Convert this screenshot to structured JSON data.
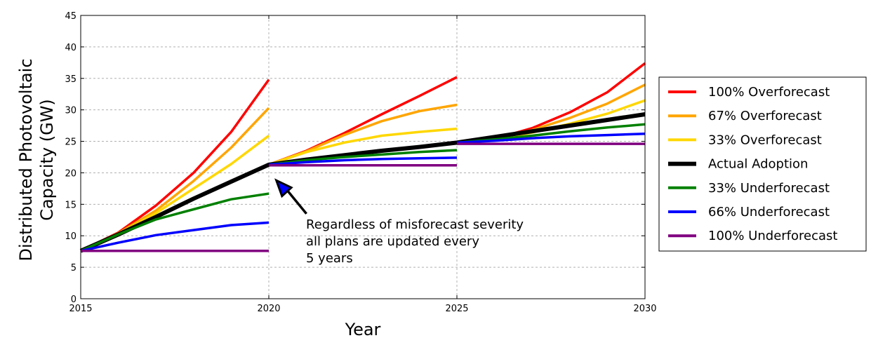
{
  "chart_data": {
    "type": "line",
    "xlabel": "Year",
    "ylabel_lines": [
      "Distributed Photovoltaic",
      "Capacity (GW)"
    ],
    "xlim": [
      2015,
      2030
    ],
    "ylim": [
      0,
      45
    ],
    "xticks": [
      "2015",
      "2020",
      "2025",
      "2030"
    ],
    "yticks": [
      "0",
      "5",
      "10",
      "15",
      "20",
      "25",
      "30",
      "35",
      "40",
      "45"
    ],
    "grid": true,
    "legend_position": "right",
    "annotation": {
      "lines": [
        "Regardless of misforecast severity",
        "all plans are updated every",
        "5 years"
      ],
      "arrow_target": [
        2020.2,
        18.8
      ],
      "arrow_tail": [
        2021.0,
        13.5
      ]
    },
    "series": [
      {
        "name": "100% Overforecast",
        "color": "#ff0000",
        "width": 3.5,
        "segments": [
          [
            [
              2015,
              7.6
            ],
            [
              2016,
              10.5
            ],
            [
              2017,
              14.8
            ],
            [
              2018,
              20.0
            ],
            [
              2019,
              26.5
            ],
            [
              2020,
              34.8
            ]
          ],
          [
            [
              2020,
              21.3
            ],
            [
              2021,
              23.5
            ],
            [
              2022,
              26.3
            ],
            [
              2023,
              29.3
            ],
            [
              2024,
              32.2
            ],
            [
              2025,
              35.2
            ]
          ],
          [
            [
              2025,
              24.8
            ],
            [
              2026,
              25.4
            ],
            [
              2027,
              27.1
            ],
            [
              2028,
              29.6
            ],
            [
              2029,
              32.8
            ],
            [
              2030,
              37.4
            ]
          ]
        ]
      },
      {
        "name": "67% Overforecast",
        "color": "#ffa500",
        "width": 3.5,
        "segments": [
          [
            [
              2015,
              7.6
            ],
            [
              2016,
              10.4
            ],
            [
              2017,
              14.0
            ],
            [
              2018,
              18.7
            ],
            [
              2019,
              24.0
            ],
            [
              2020,
              30.3
            ]
          ],
          [
            [
              2020,
              21.3
            ],
            [
              2021,
              23.4
            ],
            [
              2022,
              26.0
            ],
            [
              2023,
              28.2
            ],
            [
              2024,
              29.8
            ],
            [
              2025,
              30.8
            ]
          ],
          [
            [
              2025,
              24.8
            ],
            [
              2026,
              25.4
            ],
            [
              2027,
              26.8
            ],
            [
              2028,
              28.7
            ],
            [
              2029,
              31.0
            ],
            [
              2030,
              34.0
            ]
          ]
        ]
      },
      {
        "name": "33% Overforecast",
        "color": "#ffd700",
        "width": 3.5,
        "segments": [
          [
            [
              2015,
              7.6
            ],
            [
              2016,
              10.3
            ],
            [
              2017,
              13.6
            ],
            [
              2018,
              17.5
            ],
            [
              2019,
              21.4
            ],
            [
              2020,
              25.9
            ]
          ],
          [
            [
              2020,
              21.3
            ],
            [
              2021,
              23.3
            ],
            [
              2022,
              24.8
            ],
            [
              2023,
              25.9
            ],
            [
              2024,
              26.5
            ],
            [
              2025,
              27.0
            ]
          ],
          [
            [
              2025,
              24.8
            ],
            [
              2026,
              25.3
            ],
            [
              2027,
              26.4
            ],
            [
              2028,
              27.8
            ],
            [
              2029,
              29.4
            ],
            [
              2030,
              31.5
            ]
          ]
        ]
      },
      {
        "name": "Actual Adoption",
        "color": "#000000",
        "width": 6,
        "segments": [
          [
            [
              2015,
              7.6
            ],
            [
              2016,
              10.2
            ],
            [
              2017,
              13.0
            ],
            [
              2018,
              15.9
            ],
            [
              2019,
              18.6
            ],
            [
              2020,
              21.3
            ],
            [
              2021,
              22.1
            ],
            [
              2022,
              22.8
            ],
            [
              2023,
              23.5
            ],
            [
              2024,
              24.1
            ],
            [
              2025,
              24.8
            ],
            [
              2026,
              25.7
            ],
            [
              2027,
              26.6
            ],
            [
              2028,
              27.5
            ],
            [
              2029,
              28.4
            ],
            [
              2030,
              29.3
            ]
          ]
        ]
      },
      {
        "name": "33% Underforecast",
        "color": "#008000",
        "width": 3.5,
        "segments": [
          [
            [
              2015,
              7.6
            ],
            [
              2016,
              10.2
            ],
            [
              2017,
              12.6
            ],
            [
              2018,
              14.2
            ],
            [
              2019,
              15.8
            ],
            [
              2020,
              16.7
            ]
          ],
          [
            [
              2020,
              21.3
            ],
            [
              2021,
              22.0
            ],
            [
              2022,
              22.5
            ],
            [
              2023,
              22.9
            ],
            [
              2024,
              23.3
            ],
            [
              2025,
              23.6
            ]
          ],
          [
            [
              2025,
              24.8
            ],
            [
              2026,
              25.3
            ],
            [
              2027,
              25.9
            ],
            [
              2028,
              26.6
            ],
            [
              2029,
              27.2
            ],
            [
              2030,
              27.7
            ]
          ]
        ]
      },
      {
        "name": "66% Underforecast",
        "color": "#0000ff",
        "width": 3.5,
        "segments": [
          [
            [
              2015,
              7.6
            ],
            [
              2016,
              8.9
            ],
            [
              2017,
              10.1
            ],
            [
              2018,
              10.9
            ],
            [
              2019,
              11.7
            ],
            [
              2020,
              12.1
            ]
          ],
          [
            [
              2020,
              21.3
            ],
            [
              2021,
              21.7
            ],
            [
              2022,
              22.0
            ],
            [
              2023,
              22.2
            ],
            [
              2024,
              22.3
            ],
            [
              2025,
              22.4
            ]
          ],
          [
            [
              2025,
              24.8
            ],
            [
              2026,
              25.1
            ],
            [
              2027,
              25.5
            ],
            [
              2028,
              25.8
            ],
            [
              2029,
              26.0
            ],
            [
              2030,
              26.2
            ]
          ]
        ]
      },
      {
        "name": "100% Underforecast",
        "color": "#800080",
        "width": 3.5,
        "segments": [
          [
            [
              2015,
              7.6
            ],
            [
              2020,
              7.6
            ]
          ],
          [
            [
              2020,
              21.2
            ],
            [
              2025,
              21.2
            ]
          ],
          [
            [
              2025,
              24.6
            ],
            [
              2030,
              24.6
            ]
          ]
        ]
      }
    ]
  }
}
